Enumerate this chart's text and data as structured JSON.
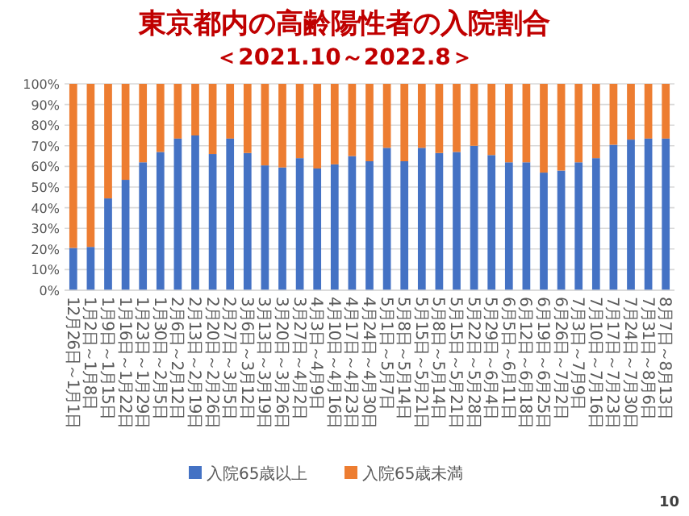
{
  "chart_data": {
    "type": "bar",
    "stacked": true,
    "title": "東京都内の高齢陽性者の入院割合",
    "subtitle": "＜2021.10～2022.8＞",
    "categories": [
      "12月26日～1月1日",
      "1月2日～1月8日",
      "1月9日～1月15日",
      "1月16日～1月22日",
      "1月23日～1月29日",
      "1月30日～2月5日",
      "2月6日～2月12日",
      "2月13日～2月19日",
      "2月20日～2月26日",
      "2月27日～3月5日",
      "3月6日～3月12日",
      "3月13日～3月19日",
      "3月20日～3月26日",
      "3月27日～4月2日",
      "4月3日～4月9日",
      "4月10日～4月16日",
      "4月17日～4月23日",
      "4月24日～4月30日",
      "5月1日～5月7日",
      "5月8日～5月14日",
      "5月15日～5月21日",
      "5月8日～5月14日",
      "5月15日～5月21日",
      "5月22日～5月28日",
      "5月29日～6月4日",
      "6月5日～6月11日",
      "6月12日～6月18日",
      "6月19日～6月25日",
      "6月26日～7月2日",
      "7月3日～7月9日",
      "7月10日～7月16日",
      "7月17日～7月23日",
      "7月24日～7月30日",
      "7月31日～8月6日",
      "8月7日～8月13日"
    ],
    "series": [
      {
        "name": "入院65歳以上",
        "color": "#4472c4",
        "values": [
          20.5,
          21,
          44.5,
          53.5,
          62,
          67,
          73.5,
          75,
          66,
          73.5,
          66.5,
          60.5,
          59.5,
          64,
          59,
          61,
          65,
          62.5,
          69,
          62.5,
          69,
          66.5,
          67,
          70,
          65.5,
          62,
          62,
          57,
          58,
          62,
          64,
          70.5,
          73,
          73.5,
          73.5
        ]
      },
      {
        "name": "入院65歳未満",
        "color": "#ed7d31",
        "values": [
          79.5,
          79,
          55.5,
          46.5,
          38,
          33,
          26.5,
          25,
          34,
          26.5,
          33.5,
          39.5,
          40.5,
          36,
          41,
          39,
          35,
          37.5,
          31,
          37.5,
          31,
          33.5,
          33,
          30,
          34.5,
          38,
          38,
          43,
          42,
          38,
          36,
          29.5,
          27,
          26.5,
          26.5
        ]
      }
    ],
    "ylim": [
      0,
      100
    ],
    "yticks": [
      {
        "value": 0,
        "label": "0%"
      },
      {
        "value": 10,
        "label": "10%"
      },
      {
        "value": 20,
        "label": "20%"
      },
      {
        "value": 30,
        "label": "30%"
      },
      {
        "value": 40,
        "label": "40%"
      },
      {
        "value": 50,
        "label": "50%"
      },
      {
        "value": 60,
        "label": "60%"
      },
      {
        "value": 70,
        "label": "70%"
      },
      {
        "value": 80,
        "label": "80%"
      },
      {
        "value": 90,
        "label": "90%"
      },
      {
        "value": 100,
        "label": "100%"
      }
    ],
    "grid": "y",
    "legend": "bottom",
    "annotations": [
      "10"
    ]
  }
}
